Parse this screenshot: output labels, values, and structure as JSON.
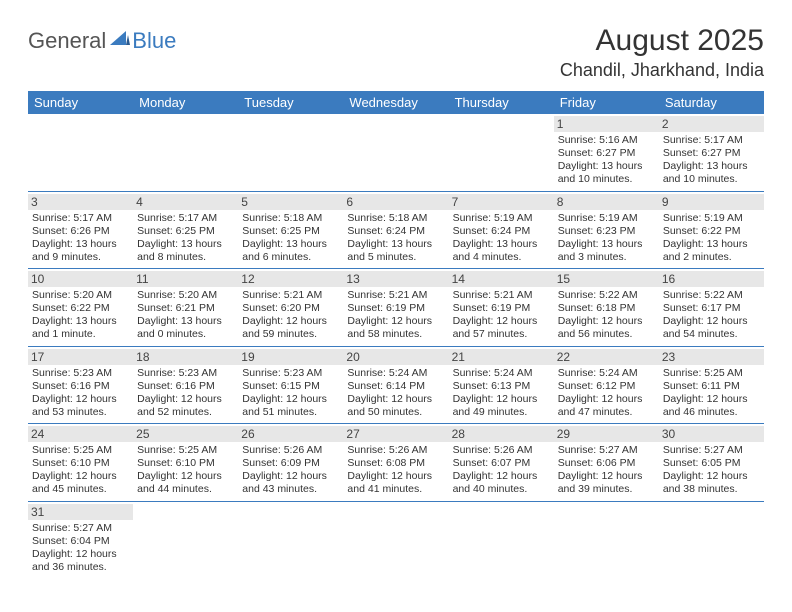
{
  "logo": {
    "part1": "General",
    "part2": "Blue"
  },
  "title": "August 2025",
  "location": "Chandil, Jharkhand, India",
  "colors": {
    "header_bg": "#3b7bbf",
    "header_fg": "#ffffff",
    "daynum_bg": "#e7e7e7",
    "rule": "#3b7bbf",
    "text": "#333333"
  },
  "dayNames": [
    "Sunday",
    "Monday",
    "Tuesday",
    "Wednesday",
    "Thursday",
    "Friday",
    "Saturday"
  ],
  "weeks": [
    [
      null,
      null,
      null,
      null,
      null,
      {
        "n": "1",
        "sr": "5:16 AM",
        "ss": "6:27 PM",
        "dl": "13 hours and 10 minutes."
      },
      {
        "n": "2",
        "sr": "5:17 AM",
        "ss": "6:27 PM",
        "dl": "13 hours and 10 minutes."
      }
    ],
    [
      {
        "n": "3",
        "sr": "5:17 AM",
        "ss": "6:26 PM",
        "dl": "13 hours and 9 minutes."
      },
      {
        "n": "4",
        "sr": "5:17 AM",
        "ss": "6:25 PM",
        "dl": "13 hours and 8 minutes."
      },
      {
        "n": "5",
        "sr": "5:18 AM",
        "ss": "6:25 PM",
        "dl": "13 hours and 6 minutes."
      },
      {
        "n": "6",
        "sr": "5:18 AM",
        "ss": "6:24 PM",
        "dl": "13 hours and 5 minutes."
      },
      {
        "n": "7",
        "sr": "5:19 AM",
        "ss": "6:24 PM",
        "dl": "13 hours and 4 minutes."
      },
      {
        "n": "8",
        "sr": "5:19 AM",
        "ss": "6:23 PM",
        "dl": "13 hours and 3 minutes."
      },
      {
        "n": "9",
        "sr": "5:19 AM",
        "ss": "6:22 PM",
        "dl": "13 hours and 2 minutes."
      }
    ],
    [
      {
        "n": "10",
        "sr": "5:20 AM",
        "ss": "6:22 PM",
        "dl": "13 hours and 1 minute."
      },
      {
        "n": "11",
        "sr": "5:20 AM",
        "ss": "6:21 PM",
        "dl": "13 hours and 0 minutes."
      },
      {
        "n": "12",
        "sr": "5:21 AM",
        "ss": "6:20 PM",
        "dl": "12 hours and 59 minutes."
      },
      {
        "n": "13",
        "sr": "5:21 AM",
        "ss": "6:19 PM",
        "dl": "12 hours and 58 minutes."
      },
      {
        "n": "14",
        "sr": "5:21 AM",
        "ss": "6:19 PM",
        "dl": "12 hours and 57 minutes."
      },
      {
        "n": "15",
        "sr": "5:22 AM",
        "ss": "6:18 PM",
        "dl": "12 hours and 56 minutes."
      },
      {
        "n": "16",
        "sr": "5:22 AM",
        "ss": "6:17 PM",
        "dl": "12 hours and 54 minutes."
      }
    ],
    [
      {
        "n": "17",
        "sr": "5:23 AM",
        "ss": "6:16 PM",
        "dl": "12 hours and 53 minutes."
      },
      {
        "n": "18",
        "sr": "5:23 AM",
        "ss": "6:16 PM",
        "dl": "12 hours and 52 minutes."
      },
      {
        "n": "19",
        "sr": "5:23 AM",
        "ss": "6:15 PM",
        "dl": "12 hours and 51 minutes."
      },
      {
        "n": "20",
        "sr": "5:24 AM",
        "ss": "6:14 PM",
        "dl": "12 hours and 50 minutes."
      },
      {
        "n": "21",
        "sr": "5:24 AM",
        "ss": "6:13 PM",
        "dl": "12 hours and 49 minutes."
      },
      {
        "n": "22",
        "sr": "5:24 AM",
        "ss": "6:12 PM",
        "dl": "12 hours and 47 minutes."
      },
      {
        "n": "23",
        "sr": "5:25 AM",
        "ss": "6:11 PM",
        "dl": "12 hours and 46 minutes."
      }
    ],
    [
      {
        "n": "24",
        "sr": "5:25 AM",
        "ss": "6:10 PM",
        "dl": "12 hours and 45 minutes."
      },
      {
        "n": "25",
        "sr": "5:25 AM",
        "ss": "6:10 PM",
        "dl": "12 hours and 44 minutes."
      },
      {
        "n": "26",
        "sr": "5:26 AM",
        "ss": "6:09 PM",
        "dl": "12 hours and 43 minutes."
      },
      {
        "n": "27",
        "sr": "5:26 AM",
        "ss": "6:08 PM",
        "dl": "12 hours and 41 minutes."
      },
      {
        "n": "28",
        "sr": "5:26 AM",
        "ss": "6:07 PM",
        "dl": "12 hours and 40 minutes."
      },
      {
        "n": "29",
        "sr": "5:27 AM",
        "ss": "6:06 PM",
        "dl": "12 hours and 39 minutes."
      },
      {
        "n": "30",
        "sr": "5:27 AM",
        "ss": "6:05 PM",
        "dl": "12 hours and 38 minutes."
      }
    ],
    [
      {
        "n": "31",
        "sr": "5:27 AM",
        "ss": "6:04 PM",
        "dl": "12 hours and 36 minutes."
      },
      null,
      null,
      null,
      null,
      null,
      null
    ]
  ],
  "labels": {
    "sunrise": "Sunrise: ",
    "sunset": "Sunset: ",
    "daylight": "Daylight: "
  }
}
